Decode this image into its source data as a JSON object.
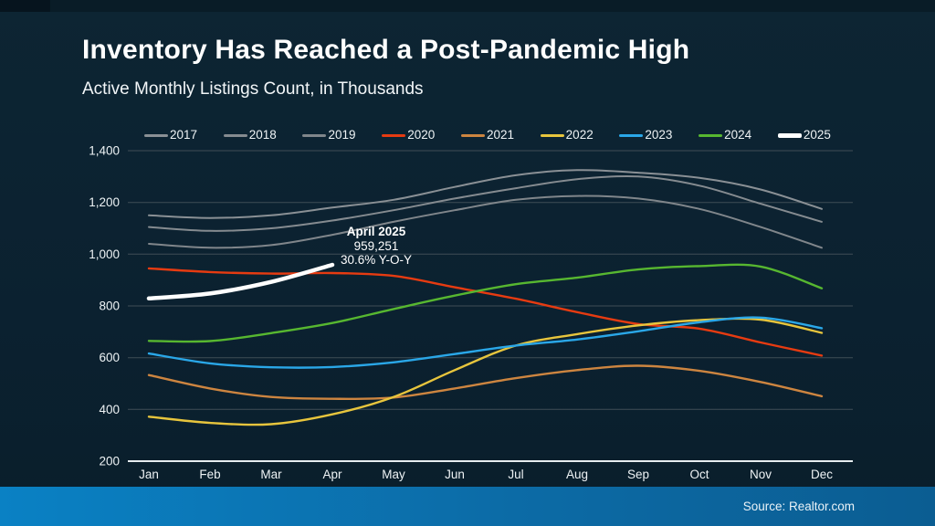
{
  "header": {
    "title": "Inventory Has Reached a Post-Pandemic High",
    "subtitle": "Active Monthly Listings Count, in Thousands"
  },
  "footer": {
    "source": "Source: Realtor.com"
  },
  "colors": {
    "background": "#0c2230",
    "accent_bar_left": "#0a81c4",
    "accent_bar_right": "#0b5d92",
    "gridline": "#3f4d56",
    "axis_line": "#e6ecef",
    "text": "#eef3f5"
  },
  "chart_data": {
    "type": "line",
    "title": "Inventory Has Reached a Post-Pandemic High",
    "subtitle": "Active Monthly Listings Count, in Thousands",
    "units": "thousands of active listings",
    "categories": [
      "Jan",
      "Feb",
      "Mar",
      "Apr",
      "May",
      "Jun",
      "Jul",
      "Aug",
      "Sep",
      "Oct",
      "Nov",
      "Dec"
    ],
    "y_axis": {
      "min": 200,
      "max": 1400,
      "tick_step": 200,
      "tick_labels": [
        "200",
        "400",
        "600",
        "800",
        "1,000",
        "1,200",
        "1,400"
      ]
    },
    "grid": true,
    "legend_position": "top",
    "series": [
      {
        "name": "2017",
        "color": "#8a9095",
        "width": 2,
        "values": [
          1150,
          1140,
          1150,
          1180,
          1210,
          1260,
          1305,
          1325,
          1315,
          1295,
          1250,
          1175
        ]
      },
      {
        "name": "2018",
        "color": "#858b90",
        "width": 2,
        "values": [
          1105,
          1090,
          1100,
          1130,
          1170,
          1215,
          1255,
          1290,
          1300,
          1265,
          1195,
          1125
        ]
      },
      {
        "name": "2019",
        "color": "#80868b",
        "width": 2,
        "values": [
          1040,
          1025,
          1035,
          1075,
          1125,
          1170,
          1210,
          1225,
          1215,
          1175,
          1105,
          1025
        ]
      },
      {
        "name": "2020",
        "color": "#e63b11",
        "width": 2.4,
        "values": [
          945,
          931,
          925,
          927,
          916,
          872,
          828,
          776,
          730,
          712,
          659,
          608
        ]
      },
      {
        "name": "2021",
        "color": "#cd8540",
        "width": 2.4,
        "values": [
          533,
          481,
          448,
          441,
          446,
          481,
          521,
          552,
          569,
          549,
          506,
          451
        ]
      },
      {
        "name": "2022",
        "color": "#e7c53d",
        "width": 2.4,
        "values": [
          372,
          348,
          343,
          381,
          448,
          552,
          647,
          691,
          725,
          745,
          747,
          696
        ]
      },
      {
        "name": "2023",
        "color": "#2aa7e8",
        "width": 2.4,
        "values": [
          616,
          578,
          563,
          564,
          582,
          614,
          647,
          670,
          702,
          737,
          755,
          714
        ]
      },
      {
        "name": "2024",
        "color": "#57b730",
        "width": 2.4,
        "values": [
          665,
          664,
          695,
          734,
          788,
          840,
          884,
          909,
          941,
          954,
          952,
          868
        ]
      },
      {
        "name": "2025",
        "color": "#ffffff",
        "width": 4.5,
        "values": [
          829,
          848,
          893,
          959
        ]
      }
    ],
    "annotation": {
      "title": "April 2025",
      "value": "959,251",
      "yoy": "30.6% Y-O-Y"
    }
  }
}
